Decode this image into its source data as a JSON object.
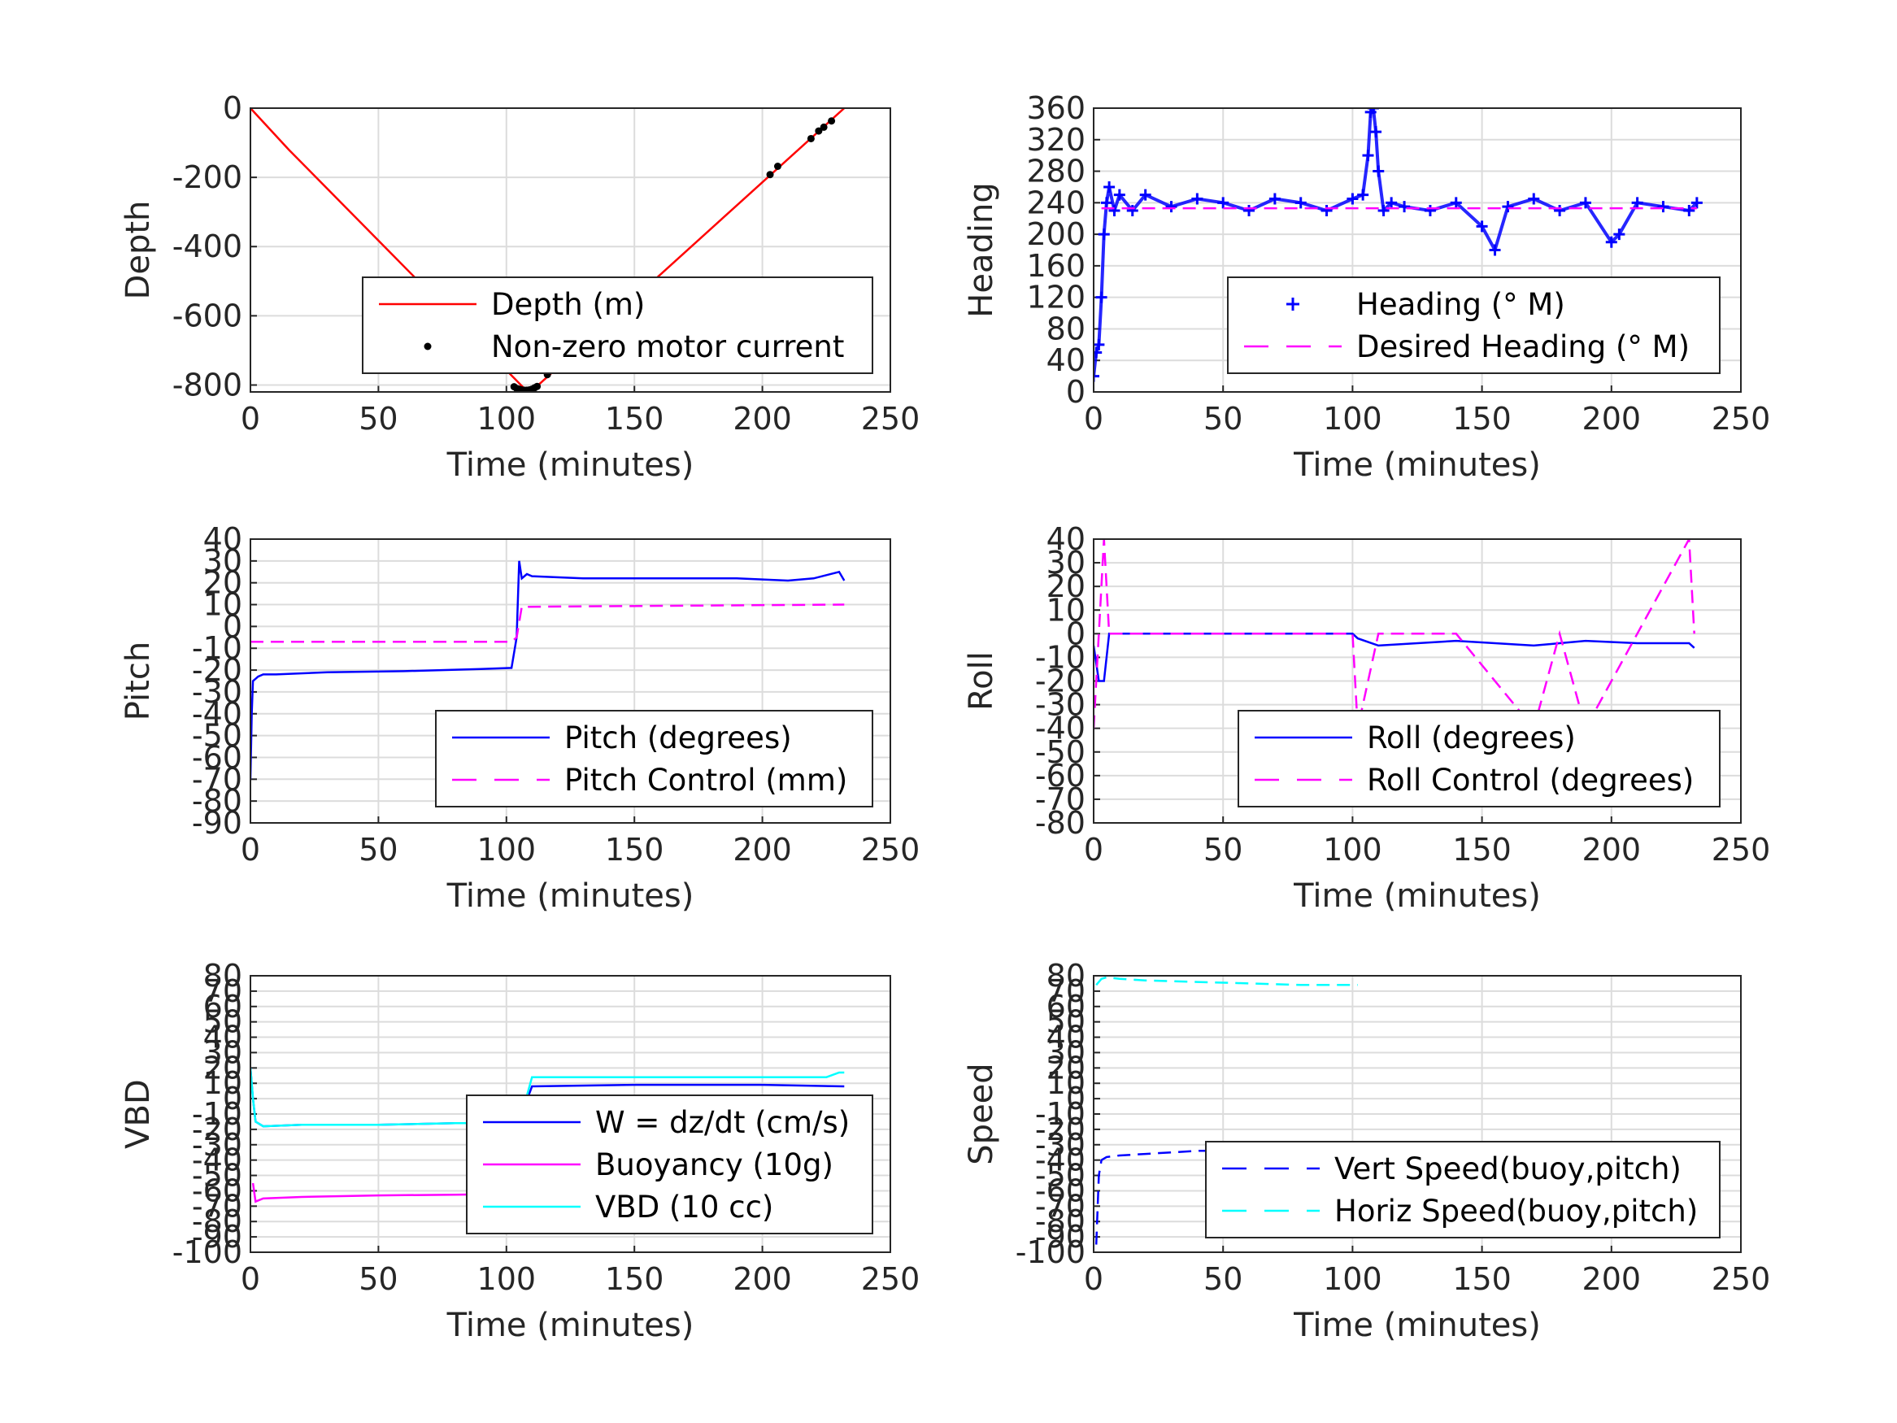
{
  "chart_data": [
    {
      "type": "line",
      "xlabel": "Time (minutes)",
      "ylabel": "Depth",
      "xlim": [
        0,
        250
      ],
      "ylim": [
        -820,
        0
      ],
      "xticks": [
        0,
        50,
        100,
        150,
        200,
        250
      ],
      "yticks": [
        0,
        -200,
        -400,
        -600,
        -800
      ],
      "grid": true,
      "legend_position": "bottom-right",
      "series": [
        {
          "name": "Depth (m)",
          "color": "#ff0000",
          "style": "solid",
          "x": [
            0,
            15,
            107,
            109,
            111,
            232
          ],
          "y": [
            0,
            -120,
            -810,
            -812,
            -810,
            0
          ]
        },
        {
          "name": "Non-zero motor current",
          "color": "#000000",
          "style": "dot",
          "x": [
            103,
            104,
            105,
            106,
            107,
            108,
            109,
            110,
            111,
            112,
            116,
            145,
            203,
            206,
            219,
            222,
            224,
            227
          ],
          "y": [
            -805,
            -810,
            -812,
            -814,
            -815,
            -815,
            -814,
            -812,
            -808,
            -804,
            -770,
            -560,
            -192,
            -168,
            -88,
            -66,
            -55,
            -37
          ]
        }
      ]
    },
    {
      "type": "scatter",
      "xlabel": "Time (minutes)",
      "ylabel": "Heading",
      "xlim": [
        0,
        250
      ],
      "ylim": [
        0,
        360
      ],
      "xticks": [
        0,
        50,
        100,
        150,
        200,
        250
      ],
      "yticks": [
        0,
        40,
        80,
        120,
        160,
        200,
        240,
        280,
        320,
        360
      ],
      "grid": true,
      "legend_position": "bottom-right",
      "series": [
        {
          "name": "Heading (° M)",
          "color": "#0000ff",
          "style": "plus",
          "x": [
            0,
            1,
            2,
            3,
            4,
            5,
            6,
            8,
            10,
            15,
            20,
            30,
            40,
            50,
            60,
            70,
            80,
            90,
            100,
            104,
            106,
            107,
            108,
            109,
            110,
            112,
            115,
            120,
            130,
            140,
            150,
            155,
            160,
            170,
            180,
            190,
            200,
            203,
            210,
            220,
            230,
            233
          ],
          "y": [
            20,
            50,
            60,
            120,
            200,
            240,
            260,
            230,
            250,
            230,
            250,
            235,
            245,
            240,
            230,
            245,
            240,
            230,
            245,
            250,
            300,
            355,
            360,
            330,
            280,
            230,
            240,
            235,
            230,
            240,
            210,
            180,
            235,
            245,
            230,
            240,
            190,
            200,
            240,
            235,
            230,
            240
          ]
        },
        {
          "name": "Desired Heading (° M)",
          "color": "#ff00ff",
          "style": "dash",
          "x": [
            3,
            233
          ],
          "y": [
            233,
            233
          ]
        }
      ]
    },
    {
      "type": "line",
      "xlabel": "Time (minutes)",
      "ylabel": "Pitch",
      "xlim": [
        0,
        250
      ],
      "ylim": [
        -90,
        40
      ],
      "xticks": [
        0,
        50,
        100,
        150,
        200,
        250
      ],
      "yticks": [
        40,
        30,
        20,
        10,
        0,
        -10,
        -20,
        -30,
        -40,
        -50,
        -60,
        -70,
        -80,
        -90
      ],
      "grid": true,
      "legend_position": "bottom-right",
      "series": [
        {
          "name": "Pitch (degrees)",
          "color": "#0000ff",
          "style": "solid",
          "x": [
            0,
            0.5,
            1,
            2,
            3,
            5,
            10,
            30,
            60,
            90,
            102,
            104,
            105,
            106,
            108,
            110,
            130,
            150,
            170,
            190,
            210,
            220,
            230,
            232
          ],
          "y": [
            -70,
            -40,
            -25,
            -24,
            -23,
            -22,
            -22,
            -21,
            -20.5,
            -19.5,
            -19,
            -5,
            30,
            22,
            24,
            23,
            22,
            22,
            22,
            22,
            21,
            22,
            25,
            21
          ]
        },
        {
          "name": "Pitch Control (mm)",
          "color": "#ff00ff",
          "style": "dash",
          "x": [
            0,
            102,
            104,
            106,
            108,
            232
          ],
          "y": [
            -7,
            -7,
            -5,
            9,
            9,
            10
          ]
        }
      ]
    },
    {
      "type": "line",
      "xlabel": "Time (minutes)",
      "ylabel": "Roll",
      "xlim": [
        0,
        250
      ],
      "ylim": [
        -80,
        40
      ],
      "xticks": [
        0,
        50,
        100,
        150,
        200,
        250
      ],
      "yticks": [
        40,
        30,
        20,
        10,
        0,
        -10,
        -20,
        -30,
        -40,
        -50,
        -60,
        -70,
        -80
      ],
      "grid": true,
      "legend_position": "bottom-right",
      "series": [
        {
          "name": "Roll (degrees)",
          "color": "#0000ff",
          "style": "solid",
          "x": [
            0,
            2,
            4,
            6,
            10,
            30,
            60,
            90,
            100,
            102,
            110,
            140,
            170,
            180,
            190,
            210,
            230,
            232
          ],
          "y": [
            -5,
            -20,
            -20,
            0,
            0,
            0,
            0,
            0,
            0,
            -2,
            -5,
            -3,
            -5,
            -4,
            -3,
            -4,
            -4,
            -6
          ]
        },
        {
          "name": "Roll Control (degrees)",
          "color": "#ff00ff",
          "style": "dash",
          "x": [
            0,
            2,
            4,
            6,
            100,
            102,
            110,
            140,
            170,
            180,
            190,
            210,
            230,
            232
          ],
          "y": [
            -40,
            0,
            40,
            0,
            0,
            -40,
            0,
            0,
            -40,
            0,
            -40,
            0,
            40,
            0
          ]
        }
      ]
    },
    {
      "type": "line",
      "xlabel": "Time (minutes)",
      "ylabel": "VBD",
      "xlim": [
        0,
        250
      ],
      "ylim": [
        -100,
        80
      ],
      "xticks": [
        0,
        50,
        100,
        150,
        200,
        250
      ],
      "yticks": [
        80,
        70,
        60,
        50,
        40,
        30,
        20,
        10,
        0,
        -10,
        -20,
        -30,
        -40,
        -50,
        -60,
        -70,
        -80,
        -90,
        -100
      ],
      "grid": true,
      "legend_position": "bottom-right",
      "series": [
        {
          "name": "W = dz/dt (cm/s)",
          "color": "#0000ff",
          "style": "solid",
          "x": [
            0,
            1,
            2,
            5,
            20,
            50,
            80,
            102,
            106,
            110,
            150,
            200,
            232
          ],
          "y": [
            20,
            0,
            -15,
            -18,
            -17,
            -17,
            -16,
            -16,
            -10,
            8,
            9,
            9,
            8
          ]
        },
        {
          "name": "Buoyancy (10g)",
          "color": "#ff00ff",
          "style": "solid",
          "x": [
            1,
            2,
            5,
            20,
            50,
            80,
            102
          ],
          "y": [
            -55,
            -67,
            -65,
            -64,
            -63,
            -62.5,
            -62
          ]
        },
        {
          "name": "VBD (10 cc)",
          "color": "#00ffff",
          "style": "solid",
          "x": [
            0,
            1,
            2,
            5,
            20,
            50,
            80,
            102,
            106,
            110,
            150,
            200,
            225,
            230,
            232
          ],
          "y": [
            20,
            0,
            -15,
            -18,
            -17,
            -17,
            -16,
            -16,
            -10,
            14,
            14,
            14,
            14,
            17,
            17
          ]
        }
      ]
    },
    {
      "type": "line",
      "xlabel": "Time (minutes)",
      "ylabel": "Speed",
      "xlim": [
        0,
        250
      ],
      "ylim": [
        -100,
        80
      ],
      "xticks": [
        0,
        50,
        100,
        150,
        200,
        250
      ],
      "yticks": [
        80,
        70,
        60,
        50,
        40,
        30,
        20,
        10,
        0,
        -10,
        -20,
        -30,
        -40,
        -50,
        -60,
        -70,
        -80,
        -90,
        -100
      ],
      "grid": true,
      "legend_position": "bottom-right",
      "series": [
        {
          "name": "Vert Speed(buoy,pitch)",
          "color": "#0000ff",
          "style": "dash",
          "x": [
            1,
            2,
            3,
            5,
            10,
            20,
            40,
            60,
            80,
            102
          ],
          "y": [
            -95,
            -50,
            -40,
            -38,
            -37,
            -36,
            -34,
            -34,
            -33,
            -33
          ]
        },
        {
          "name": "Horiz Speed(buoy,pitch)",
          "color": "#00ffff",
          "style": "dash",
          "x": [
            1,
            2,
            3,
            5,
            10,
            20,
            40,
            60,
            80,
            102
          ],
          "y": [
            74,
            76,
            78,
            79,
            78,
            77,
            76,
            75,
            74,
            74
          ]
        }
      ]
    }
  ]
}
